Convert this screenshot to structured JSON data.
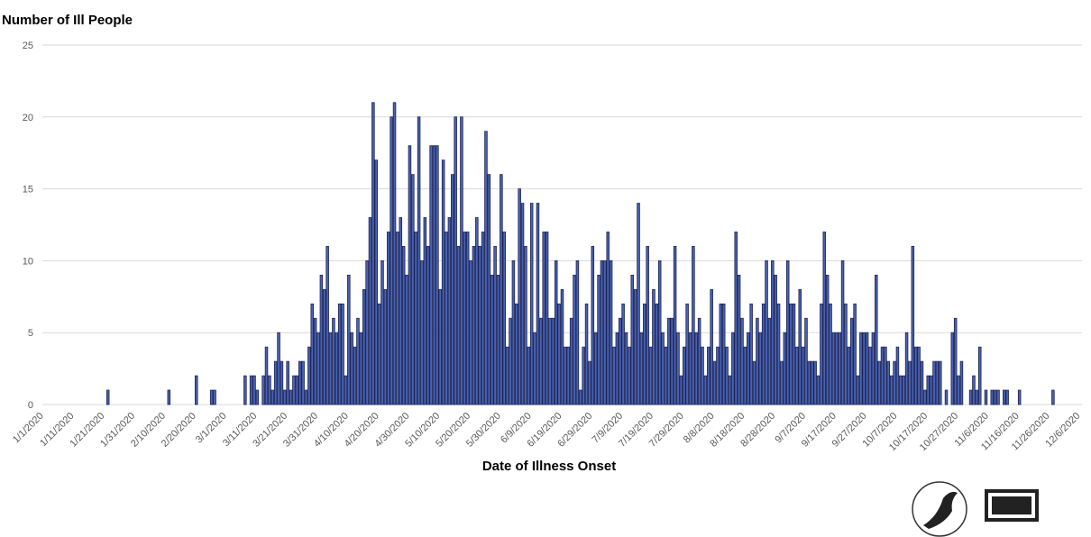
{
  "chart_data": {
    "type": "bar",
    "title": "Number of Ill People",
    "x_label": "Date of Illness Onset",
    "color": "#4a62b0",
    "ylim": [
      0,
      25
    ],
    "yticks": [
      0,
      5,
      10,
      15,
      20,
      25
    ],
    "grid": true,
    "categories": [
      "1/1/2020",
      null,
      null,
      null,
      null,
      null,
      null,
      null,
      null,
      null,
      "1/11/2020",
      null,
      null,
      null,
      null,
      null,
      null,
      null,
      null,
      null,
      "1/21/2020",
      null,
      null,
      null,
      null,
      null,
      null,
      null,
      null,
      null,
      "1/31/2020",
      null,
      null,
      null,
      null,
      null,
      null,
      null,
      null,
      null,
      "2/10/2020",
      null,
      null,
      null,
      null,
      null,
      null,
      null,
      null,
      null,
      "2/20/2020",
      null,
      null,
      null,
      null,
      null,
      null,
      null,
      null,
      null,
      "3/1/2020",
      null,
      null,
      null,
      null,
      null,
      null,
      null,
      null,
      null,
      "3/11/2020",
      null,
      null,
      null,
      null,
      null,
      null,
      null,
      null,
      null,
      "3/21/2020",
      null,
      null,
      null,
      null,
      null,
      null,
      null,
      null,
      null,
      "3/31/2020",
      null,
      null,
      null,
      null,
      null,
      null,
      null,
      null,
      null,
      "4/10/2020",
      null,
      null,
      null,
      null,
      null,
      null,
      null,
      null,
      null,
      "4/20/2020",
      null,
      null,
      null,
      null,
      null,
      null,
      null,
      null,
      null,
      "4/30/2020",
      null,
      null,
      null,
      null,
      null,
      null,
      null,
      null,
      null,
      "5/10/2020",
      null,
      null,
      null,
      null,
      null,
      null,
      null,
      null,
      null,
      "5/20/2020",
      null,
      null,
      null,
      null,
      null,
      null,
      null,
      null,
      null,
      "5/30/2020",
      null,
      null,
      null,
      null,
      null,
      null,
      null,
      null,
      null,
      "6/9/2020",
      null,
      null,
      null,
      null,
      null,
      null,
      null,
      null,
      null,
      "6/19/2020",
      null,
      null,
      null,
      null,
      null,
      null,
      null,
      null,
      null,
      "6/29/2020",
      null,
      null,
      null,
      null,
      null,
      null,
      null,
      null,
      null,
      "7/9/2020",
      null,
      null,
      null,
      null,
      null,
      null,
      null,
      null,
      null,
      "7/19/2020",
      null,
      null,
      null,
      null,
      null,
      null,
      null,
      null,
      null,
      "7/29/2020",
      null,
      null,
      null,
      null,
      null,
      null,
      null,
      null,
      null,
      "8/8/2020",
      null,
      null,
      null,
      null,
      null,
      null,
      null,
      null,
      null,
      "8/18/2020",
      null,
      null,
      null,
      null,
      null,
      null,
      null,
      null,
      null,
      "8/28/2020",
      null,
      null,
      null,
      null,
      null,
      null,
      null,
      null,
      null,
      "9/7/2020",
      null,
      null,
      null,
      null,
      null,
      null,
      null,
      null,
      null,
      "9/17/2020",
      null,
      null,
      null,
      null,
      null,
      null,
      null,
      null,
      null,
      "9/27/2020",
      null,
      null,
      null,
      null,
      null,
      null,
      null,
      null,
      null,
      "10/7/2020",
      null,
      null,
      null,
      null,
      null,
      null,
      null,
      null,
      null,
      "10/17/2020",
      null,
      null,
      null,
      null,
      null,
      null,
      null,
      null,
      null,
      "10/27/2020",
      null,
      null,
      null,
      null,
      null,
      null,
      null,
      null,
      null,
      "11/6/2020",
      null,
      null,
      null,
      null,
      null,
      null,
      null,
      null,
      null,
      "11/16/2020",
      null,
      null,
      null,
      null,
      null,
      null,
      null,
      null,
      null,
      "11/26/2020",
      null,
      null,
      null,
      null,
      null,
      null,
      null,
      null,
      null,
      "12/6/2020"
    ],
    "values": [
      0,
      0,
      0,
      0,
      0,
      0,
      0,
      0,
      0,
      0,
      0,
      0,
      0,
      0,
      0,
      0,
      0,
      0,
      0,
      0,
      0,
      1,
      0,
      0,
      0,
      0,
      0,
      0,
      0,
      0,
      0,
      0,
      0,
      0,
      0,
      0,
      0,
      0,
      0,
      0,
      0,
      1,
      0,
      0,
      0,
      0,
      0,
      0,
      0,
      0,
      2,
      0,
      0,
      0,
      0,
      1,
      1,
      0,
      0,
      0,
      0,
      0,
      0,
      0,
      0,
      0,
      2,
      0,
      2,
      2,
      1,
      0,
      2,
      4,
      2,
      1,
      3,
      5,
      3,
      1,
      3,
      1,
      2,
      2,
      3,
      3,
      1,
      4,
      7,
      6,
      5,
      9,
      8,
      11,
      5,
      6,
      5,
      7,
      7,
      2,
      9,
      5,
      4,
      6,
      5,
      8,
      10,
      13,
      21,
      17,
      7,
      10,
      8,
      12,
      20,
      21,
      12,
      13,
      11,
      9,
      18,
      16,
      12,
      20,
      10,
      13,
      11,
      18,
      18,
      18,
      8,
      17,
      12,
      13,
      16,
      20,
      11,
      20,
      12,
      12,
      10,
      11,
      13,
      11,
      12,
      19,
      16,
      9,
      11,
      9,
      16,
      12,
      4,
      6,
      10,
      7,
      15,
      14,
      11,
      4,
      14,
      5,
      14,
      6,
      12,
      12,
      6,
      6,
      10,
      7,
      8,
      4,
      4,
      6,
      9,
      10,
      1,
      4,
      7,
      3,
      11,
      5,
      9,
      10,
      10,
      12,
      10,
      4,
      5,
      6,
      7,
      5,
      4,
      9,
      8,
      14,
      5,
      7,
      11,
      4,
      8,
      7,
      10,
      5,
      4,
      6,
      6,
      11,
      5,
      2,
      4,
      7,
      5,
      11,
      5,
      6,
      4,
      2,
      4,
      8,
      3,
      4,
      7,
      7,
      4,
      2,
      5,
      12,
      9,
      6,
      4,
      5,
      7,
      3,
      6,
      5,
      7,
      10,
      6,
      10,
      9,
      7,
      3,
      5,
      10,
      7,
      7,
      4,
      8,
      4,
      6,
      3,
      3,
      3,
      2,
      7,
      12,
      9,
      7,
      5,
      5,
      5,
      10,
      7,
      4,
      6,
      7,
      2,
      5,
      5,
      5,
      4,
      5,
      9,
      3,
      4,
      4,
      3,
      2,
      3,
      4,
      2,
      2,
      5,
      3,
      11,
      4,
      4,
      3,
      1,
      2,
      2,
      3,
      3,
      3,
      0,
      1,
      0,
      5,
      6,
      2,
      3,
      0,
      0,
      1,
      2,
      1,
      4,
      0,
      1,
      0,
      1,
      1,
      1,
      0,
      1,
      1,
      0,
      0,
      0,
      1,
      0,
      0,
      0,
      0,
      0,
      0,
      0,
      0,
      0,
      0,
      1,
      0,
      0,
      0,
      0,
      0,
      0,
      0,
      0,
      0
    ]
  }
}
